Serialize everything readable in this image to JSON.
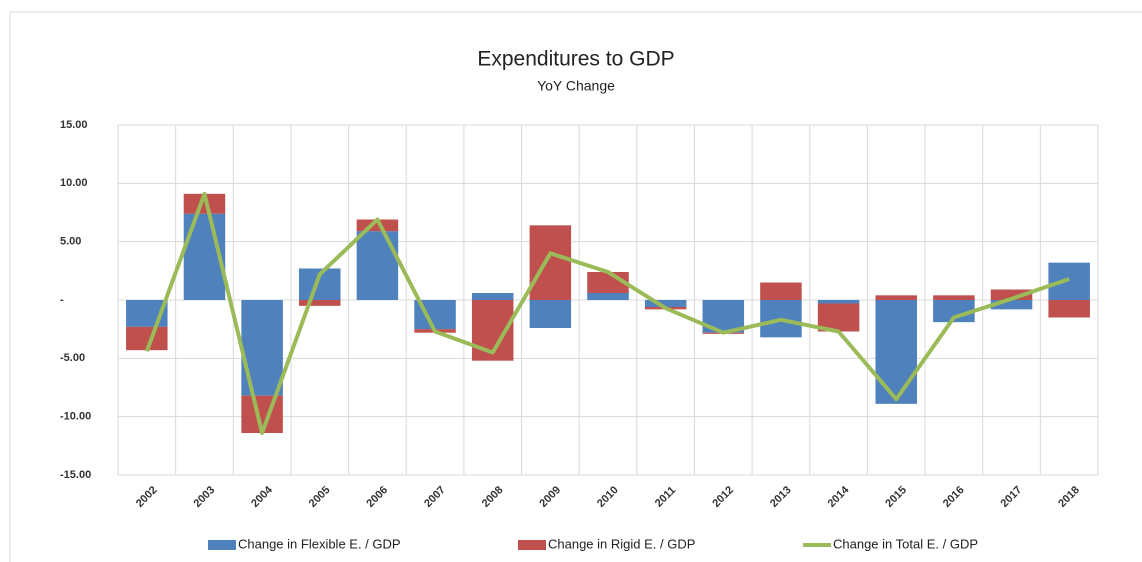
{
  "chart_data": {
    "type": "bar",
    "title": "Expenditures to GDP",
    "subtitle": "YoY Change",
    "categories": [
      "2002",
      "2003",
      "2004",
      "2005",
      "2006",
      "2007",
      "2008",
      "2009",
      "2010",
      "2011",
      "2012",
      "2013",
      "2014",
      "2015",
      "2016",
      "2017",
      "2018"
    ],
    "series": [
      {
        "name": "Change in Flexible E. / GDP",
        "color": "#4f81bd",
        "type": "bar",
        "values": [
          -2.3,
          7.4,
          -8.2,
          2.7,
          5.9,
          -2.5,
          0.6,
          -2.4,
          0.6,
          -0.6,
          -2.8,
          -3.2,
          -0.3,
          -8.9,
          -1.9,
          -0.8,
          3.2
        ]
      },
      {
        "name": "Change in Rigid E. / GDP",
        "color": "#c0504d",
        "type": "bar",
        "values": [
          -2.0,
          1.7,
          -3.2,
          -0.5,
          1.0,
          -0.3,
          -5.2,
          6.4,
          1.8,
          -0.2,
          -0.1,
          1.5,
          -2.4,
          0.4,
          0.4,
          0.9,
          -1.5
        ]
      },
      {
        "name": "Change in Total E. / GDP",
        "color": "#9bbb59",
        "type": "line",
        "values": [
          -4.4,
          9.1,
          -11.4,
          2.2,
          6.9,
          -2.7,
          -4.5,
          4.0,
          2.4,
          -0.7,
          -2.8,
          -1.7,
          -2.7,
          -8.5,
          -1.5,
          0.1,
          1.8
        ]
      }
    ],
    "ylim": [
      -15,
      15
    ],
    "yticks": [
      {
        "value": 15,
        "label": "15.00"
      },
      {
        "value": 10,
        "label": "10.00"
      },
      {
        "value": 5,
        "label": "5.00"
      },
      {
        "value": 0,
        "label": "-"
      },
      {
        "value": -5,
        "label": "-5.00"
      },
      {
        "value": -10,
        "label": "-10.00"
      },
      {
        "value": -15,
        "label": "-15.00"
      }
    ],
    "grid": true,
    "legend": "bottom"
  }
}
